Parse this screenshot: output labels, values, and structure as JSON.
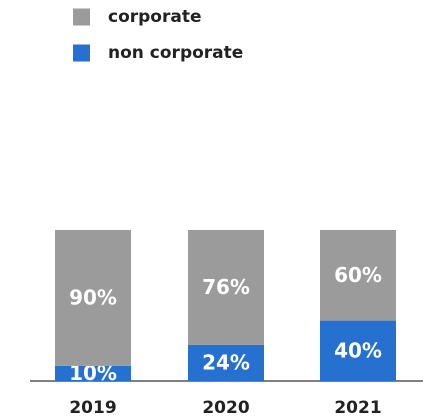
{
  "chart_data": {
    "type": "stacked_bar",
    "categories": [
      "2019",
      "2020",
      "2021"
    ],
    "series": [
      {
        "name": "corporate",
        "color": "#9b9b9c",
        "values": [
          90,
          76,
          60
        ],
        "value_labels": [
          "90%",
          "76%",
          "60%"
        ]
      },
      {
        "name": "non corporate",
        "color": "#2671d0",
        "values": [
          10,
          24,
          40
        ],
        "value_labels": [
          "10%",
          "24%",
          "40%"
        ]
      }
    ],
    "ylim": [
      0,
      100
    ]
  }
}
